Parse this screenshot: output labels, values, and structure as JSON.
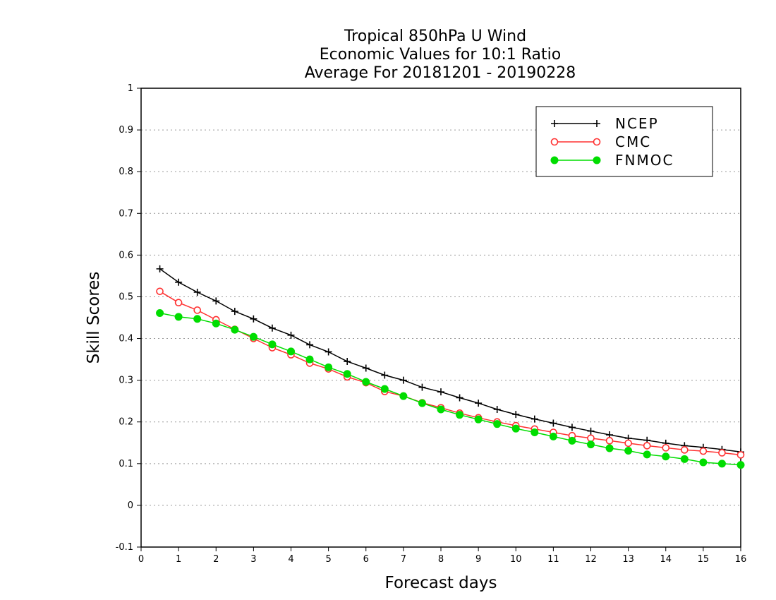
{
  "chart_data": {
    "type": "line",
    "title": [
      "Tropical 850hPa U Wind",
      "Economic Values for 10:1 Ratio",
      "Average For 20181201 - 20190228"
    ],
    "xlabel": "Forecast days",
    "ylabel": "Skill Scores",
    "xlim": [
      0,
      16
    ],
    "ylim": [
      -0.1,
      1
    ],
    "xticks": [
      0,
      1,
      2,
      3,
      4,
      5,
      6,
      7,
      8,
      9,
      10,
      11,
      12,
      13,
      14,
      15,
      16
    ],
    "xtick_labels": [
      "0",
      "1",
      "2",
      "3",
      "4",
      "5",
      "6",
      "7",
      "8",
      "9",
      "10",
      "11",
      "12",
      "13",
      "14",
      "15",
      "16"
    ],
    "yticks": [
      -0.1,
      0,
      0.1,
      0.2,
      0.3,
      0.4,
      0.5,
      0.6,
      0.7,
      0.8,
      0.9,
      1
    ],
    "ytick_labels": [
      "-0.1",
      "0",
      "0.1",
      "0.2",
      "0.3",
      "0.4",
      "0.5",
      "0.6",
      "0.7",
      "0.8",
      "0.9",
      "1"
    ],
    "grid": "horizontal dotted",
    "legend_position": "top-right",
    "x": [
      0.5,
      1,
      1.5,
      2,
      2.5,
      3,
      3.5,
      4,
      4.5,
      5,
      5.5,
      6,
      6.5,
      7,
      7.5,
      8,
      8.5,
      9,
      9.5,
      10,
      10.5,
      11,
      11.5,
      12,
      12.5,
      13,
      13.5,
      14,
      14.5,
      15,
      15.5,
      16
    ],
    "series": [
      {
        "name": "NCEP",
        "color": "#000000",
        "marker": "plus",
        "values": [
          0.567,
          0.535,
          0.511,
          0.49,
          0.465,
          0.447,
          0.425,
          0.408,
          0.385,
          0.368,
          0.345,
          0.329,
          0.312,
          0.3,
          0.283,
          0.272,
          0.258,
          0.245,
          0.23,
          0.218,
          0.207,
          0.197,
          0.187,
          0.178,
          0.169,
          0.161,
          0.156,
          0.149,
          0.143,
          0.139,
          0.134,
          0.128
        ]
      },
      {
        "name": "CMC",
        "color": "#ff3030",
        "marker": "open-circle",
        "values": [
          0.513,
          0.486,
          0.468,
          0.445,
          0.422,
          0.4,
          0.378,
          0.361,
          0.341,
          0.327,
          0.308,
          0.294,
          0.273,
          0.262,
          0.246,
          0.234,
          0.221,
          0.21,
          0.2,
          0.191,
          0.183,
          0.175,
          0.167,
          0.161,
          0.155,
          0.149,
          0.143,
          0.138,
          0.133,
          0.13,
          0.126,
          0.121
        ]
      },
      {
        "name": "FNMOC",
        "color": "#00dd00",
        "marker": "filled-circle",
        "values": [
          0.461,
          0.452,
          0.447,
          0.436,
          0.421,
          0.404,
          0.386,
          0.369,
          0.35,
          0.331,
          0.315,
          0.296,
          0.279,
          0.262,
          0.245,
          0.23,
          0.217,
          0.206,
          0.195,
          0.184,
          0.175,
          0.165,
          0.155,
          0.146,
          0.137,
          0.131,
          0.122,
          0.117,
          0.111,
          0.103,
          0.1,
          0.097
        ]
      }
    ]
  }
}
